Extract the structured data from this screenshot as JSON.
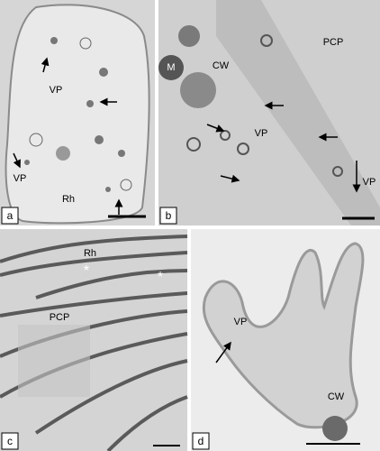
{
  "panels": [
    {
      "label": "a",
      "annotations": [
        "VP",
        "VP",
        "Rh"
      ]
    },
    {
      "label": "b",
      "annotations": [
        "PCP",
        "M",
        "CW",
        "VP",
        "VP"
      ]
    },
    {
      "label": "c",
      "annotations": [
        "Rh",
        "*",
        "*",
        "PCP"
      ]
    },
    {
      "label": "d",
      "annotations": [
        "VP",
        "CW"
      ]
    }
  ]
}
